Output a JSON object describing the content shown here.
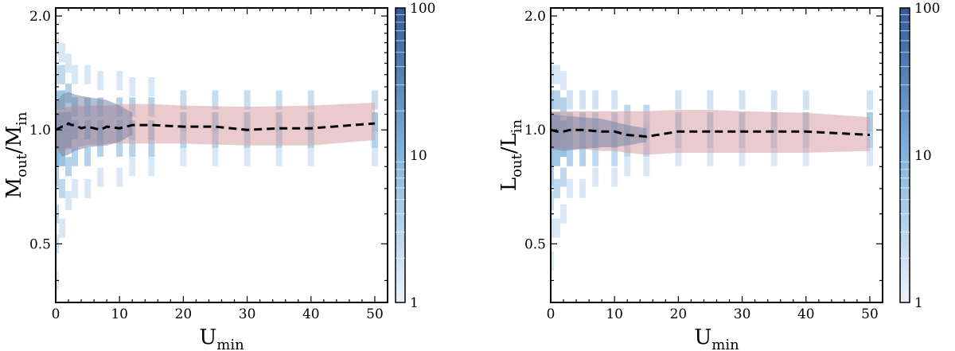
{
  "chart_data": [
    {
      "type": "heatmap",
      "panel": "left",
      "title": "",
      "xlabel": {
        "main": "U",
        "sub": "min"
      },
      "ylabel": {
        "num": "M",
        "num_sub": "out",
        "den": "M",
        "den_sub": "in"
      },
      "xlim": [
        0,
        52
      ],
      "ylim": [
        0.35,
        2.1
      ],
      "yscale": "log",
      "xticks": [
        0,
        10,
        20,
        30,
        40,
        50
      ],
      "xtick_labels": [
        "0",
        "10",
        "20",
        "30",
        "40",
        "50"
      ],
      "yticks": [
        0.5,
        1.0,
        2.0
      ],
      "ytick_labels": [
        "0.5",
        "1.0",
        "2.0"
      ],
      "series": [
        {
          "type": "line",
          "style": "dashed",
          "color": "#000000",
          "x": [
            0,
            0.5,
            1,
            1.5,
            2,
            2.5,
            3,
            4,
            5,
            7,
            8,
            10,
            12,
            15,
            20,
            25,
            30,
            35,
            40,
            50
          ],
          "y": [
            1.0,
            1.01,
            1.02,
            1.02,
            1.04,
            1.03,
            1.03,
            1.01,
            1.02,
            1.0,
            1.02,
            1.01,
            1.03,
            1.03,
            1.02,
            1.02,
            1.0,
            1.01,
            1.01,
            1.04
          ]
        },
        {
          "type": "band",
          "color": "#d9a0a4",
          "x": [
            0,
            1,
            2,
            3,
            5,
            8,
            10,
            15,
            20,
            30,
            40,
            50
          ],
          "lower": [
            0.88,
            0.88,
            0.89,
            0.9,
            0.91,
            0.92,
            0.92,
            0.92,
            0.92,
            0.91,
            0.91,
            0.94
          ],
          "upper": [
            1.13,
            1.14,
            1.15,
            1.15,
            1.16,
            1.16,
            1.17,
            1.17,
            1.16,
            1.15,
            1.16,
            1.18
          ]
        },
        {
          "type": "band",
          "color": "#7a86a6",
          "x": [
            0,
            1,
            2,
            3,
            5,
            8,
            10,
            12
          ],
          "lower": [
            0.9,
            0.85,
            0.86,
            0.88,
            0.9,
            0.91,
            0.93,
            0.97
          ],
          "upper": [
            1.18,
            1.24,
            1.26,
            1.24,
            1.22,
            1.2,
            1.16,
            1.11
          ]
        }
      ],
      "heatmap_columns": [
        {
          "x": 0,
          "cells": [
            [
              0.4,
              0.08
            ],
            [
              0.5,
              0.15
            ],
            [
              0.6,
              0.25
            ],
            [
              0.75,
              0.35
            ],
            [
              0.85,
              0.55
            ],
            [
              0.95,
              0.7
            ],
            [
              1.05,
              0.65
            ],
            [
              1.2,
              0.45
            ],
            [
              1.4,
              0.25
            ],
            [
              1.65,
              0.1
            ]
          ]
        },
        {
          "x": 1,
          "cells": [
            [
              0.55,
              0.1
            ],
            [
              0.7,
              0.25
            ],
            [
              0.85,
              0.45
            ],
            [
              0.95,
              0.6
            ],
            [
              1.05,
              0.6
            ],
            [
              1.2,
              0.4
            ],
            [
              1.4,
              0.25
            ],
            [
              1.6,
              0.1
            ]
          ]
        },
        {
          "x": 2,
          "cells": [
            [
              0.65,
              0.12
            ],
            [
              0.8,
              0.3
            ],
            [
              0.95,
              0.55
            ],
            [
              1.05,
              0.55
            ],
            [
              1.25,
              0.3
            ],
            [
              1.5,
              0.12
            ]
          ]
        },
        {
          "x": 3,
          "cells": [
            [
              0.7,
              0.1
            ],
            [
              0.85,
              0.3
            ],
            [
              1.0,
              0.5
            ],
            [
              1.15,
              0.35
            ],
            [
              1.4,
              0.12
            ]
          ]
        },
        {
          "x": 5,
          "cells": [
            [
              0.7,
              0.1
            ],
            [
              0.85,
              0.3
            ],
            [
              1.0,
              0.5
            ],
            [
              1.15,
              0.35
            ],
            [
              1.4,
              0.12
            ]
          ]
        },
        {
          "x": 7,
          "cells": [
            [
              0.75,
              0.1
            ],
            [
              0.9,
              0.3
            ],
            [
              1.0,
              0.45
            ],
            [
              1.15,
              0.3
            ],
            [
              1.35,
              0.1
            ]
          ]
        },
        {
          "x": 10,
          "cells": [
            [
              0.75,
              0.1
            ],
            [
              0.9,
              0.3
            ],
            [
              1.0,
              0.45
            ],
            [
              1.15,
              0.3
            ],
            [
              1.35,
              0.1
            ]
          ]
        },
        {
          "x": 12,
          "cells": [
            [
              0.8,
              0.1
            ],
            [
              0.9,
              0.3
            ],
            [
              1.0,
              0.45
            ],
            [
              1.15,
              0.3
            ],
            [
              1.3,
              0.1
            ]
          ]
        },
        {
          "x": 15,
          "cells": [
            [
              0.8,
              0.1
            ],
            [
              0.9,
              0.3
            ],
            [
              1.0,
              0.45
            ],
            [
              1.15,
              0.3
            ],
            [
              1.3,
              0.1
            ]
          ]
        },
        {
          "x": 20,
          "cells": [
            [
              0.85,
              0.1
            ],
            [
              0.95,
              0.3
            ],
            [
              1.05,
              0.4
            ],
            [
              1.2,
              0.2
            ]
          ]
        },
        {
          "x": 25,
          "cells": [
            [
              0.85,
              0.1
            ],
            [
              0.95,
              0.3
            ],
            [
              1.05,
              0.4
            ],
            [
              1.2,
              0.2
            ]
          ]
        },
        {
          "x": 30,
          "cells": [
            [
              0.85,
              0.1
            ],
            [
              0.95,
              0.3
            ],
            [
              1.05,
              0.4
            ],
            [
              1.2,
              0.2
            ]
          ]
        },
        {
          "x": 35,
          "cells": [
            [
              0.85,
              0.1
            ],
            [
              0.95,
              0.3
            ],
            [
              1.05,
              0.4
            ],
            [
              1.2,
              0.2
            ]
          ]
        },
        {
          "x": 40,
          "cells": [
            [
              0.85,
              0.1
            ],
            [
              0.95,
              0.3
            ],
            [
              1.05,
              0.4
            ],
            [
              1.2,
              0.2
            ]
          ]
        },
        {
          "x": 50,
          "cells": [
            [
              0.85,
              0.1
            ],
            [
              0.95,
              0.3
            ],
            [
              1.05,
              0.4
            ],
            [
              1.2,
              0.2
            ]
          ]
        }
      ],
      "colorbar": {
        "scale": "log",
        "range": [
          1,
          100
        ],
        "ticks": [
          1,
          10,
          100
        ],
        "tick_labels": [
          "1",
          "10",
          "100"
        ]
      }
    },
    {
      "type": "heatmap",
      "panel": "right",
      "title": "",
      "xlabel": {
        "main": "U",
        "sub": "min"
      },
      "ylabel": {
        "num": "L",
        "num_sub": "out",
        "den": "L",
        "den_sub": "in"
      },
      "xlim": [
        0,
        52
      ],
      "ylim": [
        0.35,
        2.1
      ],
      "yscale": "log",
      "xticks": [
        0,
        10,
        20,
        30,
        40,
        50
      ],
      "xtick_labels": [
        "0",
        "10",
        "20",
        "30",
        "40",
        "50"
      ],
      "yticks": [
        0.5,
        1.0,
        2.0
      ],
      "ytick_labels": [
        "0.5",
        "1.0",
        "2.0"
      ],
      "series": [
        {
          "type": "line",
          "style": "dashed",
          "color": "#000000",
          "x": [
            0,
            1,
            2,
            3,
            5,
            8,
            10,
            12,
            15,
            20,
            25,
            30,
            35,
            40,
            50
          ],
          "y": [
            1.0,
            0.99,
            0.99,
            1.0,
            1.0,
            0.99,
            0.99,
            0.97,
            0.96,
            0.99,
            0.99,
            0.99,
            0.99,
            0.99,
            0.97
          ]
        },
        {
          "type": "band",
          "color": "#d9a0a4",
          "x": [
            0,
            2,
            5,
            8,
            10,
            12,
            15,
            20,
            25,
            30,
            40,
            50
          ],
          "lower": [
            0.9,
            0.89,
            0.89,
            0.88,
            0.88,
            0.87,
            0.86,
            0.87,
            0.87,
            0.87,
            0.87,
            0.88
          ],
          "upper": [
            1.12,
            1.12,
            1.12,
            1.12,
            1.12,
            1.12,
            1.12,
            1.13,
            1.13,
            1.12,
            1.11,
            1.08
          ]
        },
        {
          "type": "band",
          "color": "#7a86a6",
          "x": [
            0,
            2,
            5,
            8,
            10,
            12,
            15
          ],
          "lower": [
            0.89,
            0.88,
            0.89,
            0.9,
            0.9,
            0.91,
            0.93
          ],
          "upper": [
            1.1,
            1.09,
            1.08,
            1.07,
            1.05,
            1.03,
            1.01
          ]
        }
      ],
      "heatmap_columns": [
        {
          "x": 0,
          "cells": [
            [
              0.45,
              0.1
            ],
            [
              0.55,
              0.15
            ],
            [
              0.65,
              0.25
            ],
            [
              0.75,
              0.35
            ],
            [
              0.85,
              0.45
            ],
            [
              0.95,
              0.6
            ],
            [
              1.05,
              0.6
            ],
            [
              1.2,
              0.4
            ],
            [
              1.4,
              0.2
            ]
          ]
        },
        {
          "x": 1,
          "cells": [
            [
              0.55,
              0.1
            ],
            [
              0.7,
              0.25
            ],
            [
              0.85,
              0.4
            ],
            [
              0.95,
              0.55
            ],
            [
              1.05,
              0.55
            ],
            [
              1.2,
              0.3
            ],
            [
              1.4,
              0.12
            ]
          ]
        },
        {
          "x": 2,
          "cells": [
            [
              0.6,
              0.1
            ],
            [
              0.75,
              0.25
            ],
            [
              0.9,
              0.45
            ],
            [
              1.0,
              0.5
            ],
            [
              1.15,
              0.3
            ],
            [
              1.35,
              0.1
            ]
          ]
        },
        {
          "x": 3,
          "cells": [
            [
              0.7,
              0.1
            ],
            [
              0.85,
              0.3
            ],
            [
              0.95,
              0.45
            ],
            [
              1.05,
              0.4
            ],
            [
              1.2,
              0.15
            ]
          ]
        },
        {
          "x": 5,
          "cells": [
            [
              0.7,
              0.1
            ],
            [
              0.85,
              0.3
            ],
            [
              0.95,
              0.45
            ],
            [
              1.05,
              0.4
            ],
            [
              1.2,
              0.15
            ]
          ]
        },
        {
          "x": 7,
          "cells": [
            [
              0.75,
              0.1
            ],
            [
              0.85,
              0.25
            ],
            [
              0.95,
              0.4
            ],
            [
              1.05,
              0.35
            ],
            [
              1.2,
              0.15
            ]
          ]
        },
        {
          "x": 10,
          "cells": [
            [
              0.75,
              0.1
            ],
            [
              0.85,
              0.25
            ],
            [
              0.95,
              0.4
            ],
            [
              1.05,
              0.35
            ],
            [
              1.2,
              0.15
            ]
          ]
        },
        {
          "x": 12,
          "cells": [
            [
              0.8,
              0.1
            ],
            [
              0.9,
              0.25
            ],
            [
              1.0,
              0.35
            ],
            [
              1.1,
              0.25
            ]
          ]
        },
        {
          "x": 15,
          "cells": [
            [
              0.8,
              0.1
            ],
            [
              0.9,
              0.25
            ],
            [
              1.0,
              0.35
            ],
            [
              1.1,
              0.25
            ]
          ]
        },
        {
          "x": 20,
          "cells": [
            [
              0.85,
              0.1
            ],
            [
              0.95,
              0.3
            ],
            [
              1.05,
              0.35
            ],
            [
              1.2,
              0.15
            ]
          ]
        },
        {
          "x": 25,
          "cells": [
            [
              0.85,
              0.1
            ],
            [
              0.95,
              0.3
            ],
            [
              1.05,
              0.35
            ],
            [
              1.2,
              0.15
            ]
          ]
        },
        {
          "x": 30,
          "cells": [
            [
              0.85,
              0.1
            ],
            [
              0.95,
              0.3
            ],
            [
              1.05,
              0.35
            ],
            [
              1.2,
              0.15
            ]
          ]
        },
        {
          "x": 35,
          "cells": [
            [
              0.85,
              0.1
            ],
            [
              0.95,
              0.3
            ],
            [
              1.05,
              0.35
            ],
            [
              1.2,
              0.15
            ]
          ]
        },
        {
          "x": 40,
          "cells": [
            [
              0.85,
              0.1
            ],
            [
              0.95,
              0.3
            ],
            [
              1.05,
              0.35
            ],
            [
              1.2,
              0.15
            ]
          ]
        },
        {
          "x": 50,
          "cells": [
            [
              0.85,
              0.1
            ],
            [
              0.95,
              0.3
            ],
            [
              1.05,
              0.35
            ],
            [
              1.2,
              0.15
            ]
          ]
        }
      ],
      "colorbar": {
        "scale": "log",
        "range": [
          1,
          100
        ],
        "ticks": [
          1,
          10,
          100
        ],
        "tick_labels": [
          "1",
          "10",
          "100"
        ]
      }
    }
  ]
}
